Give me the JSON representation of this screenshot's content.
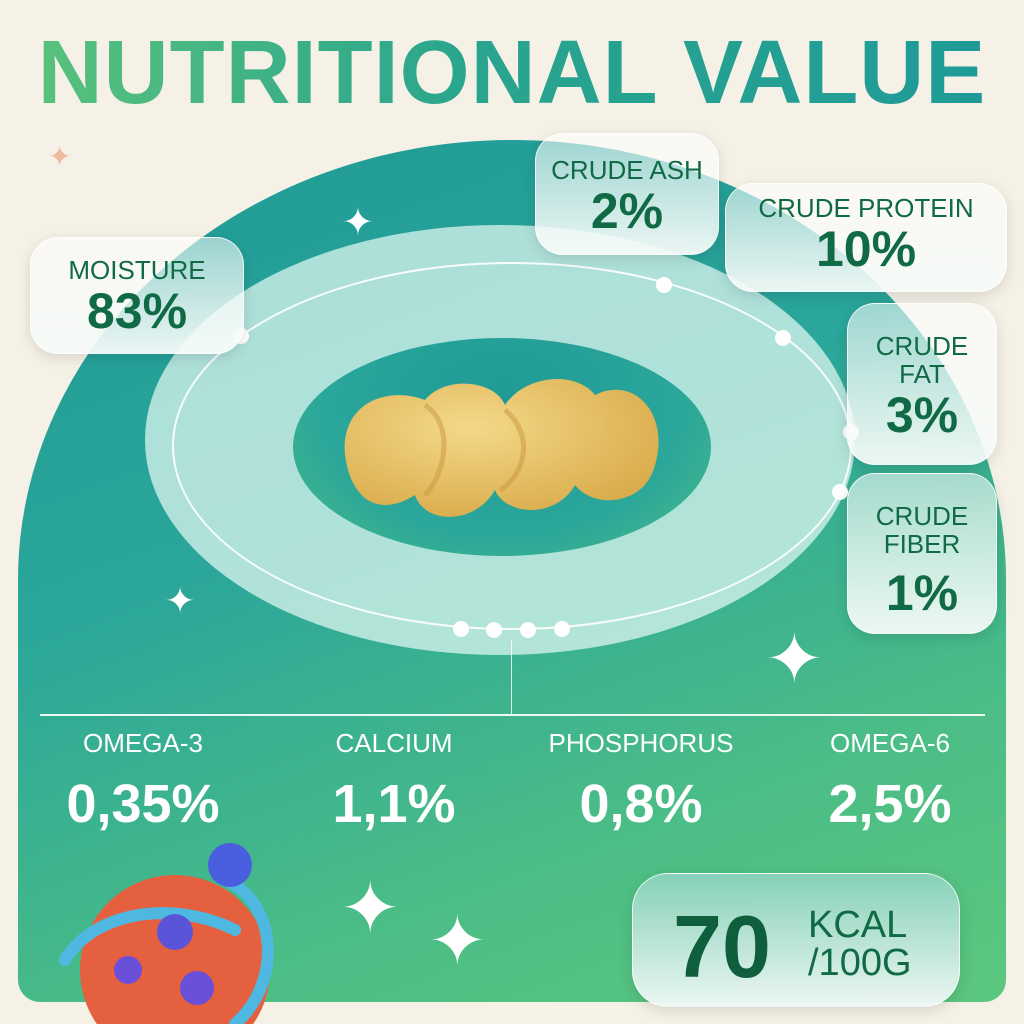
{
  "title": "NUTRITIONAL VALUE",
  "composition": [
    {
      "label": "MOISTURE",
      "value": "83%"
    },
    {
      "label": "CRUDE ASH",
      "value": "2%"
    },
    {
      "label": "CRUDE PROTEIN",
      "value": "10%"
    },
    {
      "label": "CRUDE FAT",
      "value": "3%"
    },
    {
      "label": "CRUDE FIBER",
      "value": "1%"
    }
  ],
  "minerals": [
    {
      "label": "OMEGA-3",
      "value": "0,35%"
    },
    {
      "label": "CALCIUM",
      "value": "1,1%"
    },
    {
      "label": "PHOSPHORUS",
      "value": "0,8%"
    },
    {
      "label": "OMEGA-6",
      "value": "2,5%"
    }
  ],
  "energy": {
    "value": "70",
    "unit_line1": "KCAL",
    "unit_line2": "/100G"
  },
  "colors": {
    "accent": "#0f6a45",
    "teal": "#1f9a96",
    "green": "#5cc77e"
  }
}
